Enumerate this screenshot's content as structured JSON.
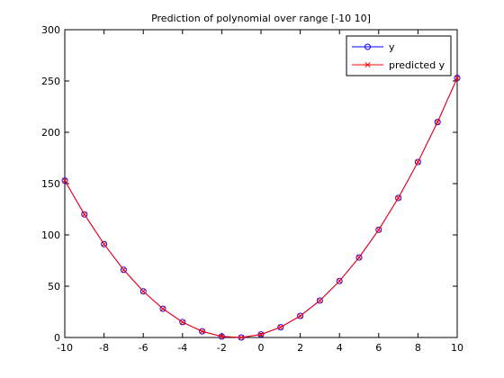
{
  "chart_data": {
    "type": "line",
    "title": "Prediction of polynomial over range [-10 10]",
    "xlabel": "",
    "ylabel": "",
    "xlim": [
      -10,
      10
    ],
    "ylim": [
      0,
      300
    ],
    "x_ticks": [
      -10,
      -8,
      -6,
      -4,
      -2,
      0,
      2,
      4,
      6,
      8,
      10
    ],
    "y_ticks": [
      0,
      50,
      100,
      150,
      200,
      250,
      300
    ],
    "grid": false,
    "legend_position": "top-right",
    "x": [
      -10,
      -9,
      -8,
      -7,
      -6,
      -5,
      -4,
      -3,
      -2,
      -1,
      0,
      1,
      2,
      3,
      4,
      5,
      6,
      7,
      8,
      9,
      10
    ],
    "series": [
      {
        "name": "y",
        "color": "#0000ff",
        "marker": "circle",
        "values": [
          153,
          120,
          91,
          66,
          45,
          28,
          15,
          6,
          1,
          0,
          3,
          10,
          21,
          36,
          55,
          78,
          105,
          136,
          171,
          210,
          253
        ]
      },
      {
        "name": "predicted y",
        "color": "#ff0000",
        "marker": "x",
        "values": [
          153,
          120,
          91,
          66,
          45,
          28,
          15,
          6,
          1,
          0,
          3,
          10,
          21,
          36,
          55,
          78,
          105,
          136,
          171,
          210,
          253
        ]
      }
    ]
  }
}
